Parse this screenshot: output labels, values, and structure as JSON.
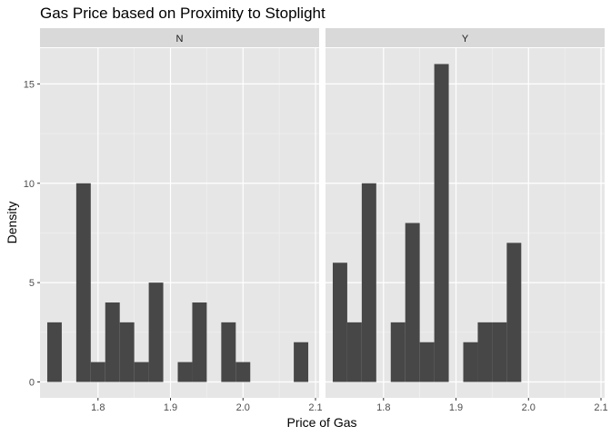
{
  "chart_data": {
    "type": "bar",
    "title": "Gas Price based on Proximity to Stoplight",
    "xlabel": "Price of Gas",
    "ylabel": "Density",
    "xlim": [
      1.72,
      2.105
    ],
    "ylim": [
      -0.8,
      16.8
    ],
    "x_ticks": [
      1.8,
      1.9,
      2.0,
      2.1
    ],
    "x_tick_labels": [
      "1.8",
      "1.9",
      "2.0",
      "2.1"
    ],
    "y_ticks": [
      0,
      5,
      10,
      15
    ],
    "y_tick_labels": [
      "0",
      "5",
      "10",
      "15"
    ],
    "bin_width": 0.02,
    "bin_starts": [
      1.73,
      1.75,
      1.77,
      1.79,
      1.81,
      1.83,
      1.85,
      1.87,
      1.89,
      1.91,
      1.93,
      1.95,
      1.97,
      1.99,
      2.01,
      2.03,
      2.05,
      2.07
    ],
    "grid": true,
    "panels": [
      {
        "label": "N",
        "values": [
          3,
          0,
          10,
          1,
          4,
          3,
          1,
          5,
          0,
          1,
          4,
          0,
          3,
          1,
          0,
          0,
          0,
          2
        ]
      },
      {
        "label": "Y",
        "values": [
          6,
          3,
          10,
          0,
          3,
          8,
          2,
          16,
          0,
          2,
          3,
          3,
          7,
          0,
          0,
          0,
          0,
          0
        ]
      }
    ],
    "colors": {
      "bar": "#474747",
      "panel_bg": "#e6e6e6",
      "grid_major": "#ffffff",
      "strip_bg": "#d9d9d9"
    }
  }
}
